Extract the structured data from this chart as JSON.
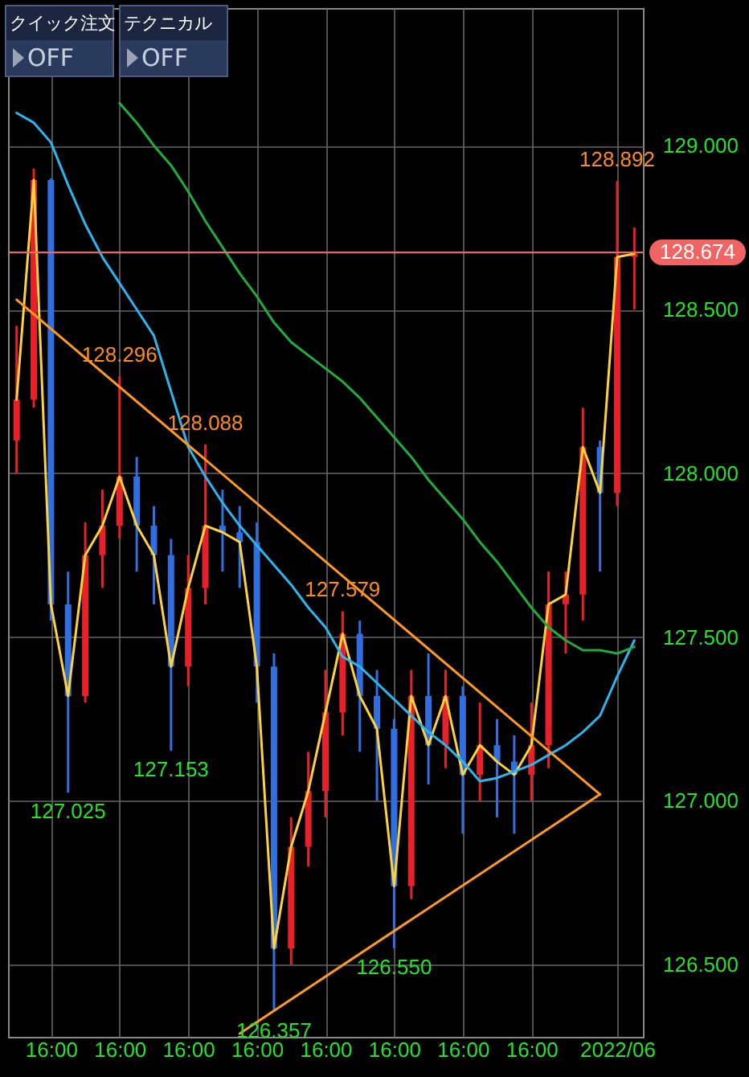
{
  "chart_data": {
    "type": "candlestick",
    "categories": [
      null,
      null,
      "16:00",
      null,
      null,
      null,
      "16:00",
      null,
      null,
      null,
      "16:00",
      null,
      null,
      null,
      "16:00",
      null,
      null,
      null,
      "16:00",
      null,
      null,
      null,
      "16:00",
      null,
      null,
      null,
      "16:00",
      null,
      null,
      null,
      "16:00",
      null,
      null,
      null,
      null,
      "2022/06",
      null
    ],
    "ohlc": [
      [
        128.1,
        128.45,
        128.0,
        128.225
      ],
      [
        128.225,
        128.93,
        128.2,
        128.895
      ],
      [
        128.895,
        128.9,
        127.55,
        127.6
      ],
      [
        127.6,
        127.7,
        127.025,
        127.32
      ],
      [
        127.32,
        127.85,
        127.3,
        127.75
      ],
      [
        127.75,
        127.95,
        127.65,
        127.84
      ],
      [
        127.84,
        128.296,
        127.8,
        127.99
      ],
      [
        127.99,
        128.05,
        127.7,
        127.84
      ],
      [
        127.84,
        127.9,
        127.6,
        127.75
      ],
      [
        127.75,
        127.8,
        127.153,
        127.41
      ],
      [
        127.41,
        127.75,
        127.35,
        127.65
      ],
      [
        127.65,
        128.088,
        127.6,
        127.84
      ],
      [
        127.84,
        127.95,
        127.7,
        127.82
      ],
      [
        127.82,
        127.9,
        127.65,
        127.79
      ],
      [
        127.79,
        127.85,
        127.3,
        127.41
      ],
      [
        127.41,
        127.45,
        126.357,
        126.55
      ],
      [
        126.55,
        126.95,
        126.5,
        126.86
      ],
      [
        126.86,
        127.15,
        126.8,
        127.03
      ],
      [
        127.03,
        127.4,
        126.95,
        127.27
      ],
      [
        127.27,
        127.579,
        127.2,
        127.51
      ],
      [
        127.51,
        127.55,
        127.15,
        127.32
      ],
      [
        127.32,
        127.4,
        127.0,
        127.22
      ],
      [
        127.22,
        127.25,
        126.55,
        126.74
      ],
      [
        126.74,
        127.4,
        126.7,
        127.32
      ],
      [
        127.32,
        127.45,
        127.05,
        127.17
      ],
      [
        127.17,
        127.4,
        127.1,
        127.32
      ],
      [
        127.32,
        127.35,
        126.9,
        127.08
      ],
      [
        127.08,
        127.3,
        127.0,
        127.17
      ],
      [
        127.17,
        127.25,
        126.95,
        127.12
      ],
      [
        127.12,
        127.2,
        126.9,
        127.08
      ],
      [
        127.08,
        127.3,
        127.0,
        127.17
      ],
      [
        127.17,
        127.7,
        127.1,
        127.6
      ],
      [
        127.6,
        127.7,
        127.45,
        127.63
      ],
      [
        127.63,
        128.2,
        127.55,
        128.08
      ],
      [
        128.08,
        128.1,
        127.7,
        127.94
      ],
      [
        127.94,
        128.892,
        127.9,
        128.66
      ],
      [
        128.66,
        128.75,
        128.5,
        128.67
      ]
    ],
    "series": [
      {
        "type": "line",
        "color": "#ffd23c",
        "values": [
          128.225,
          128.895,
          127.6,
          127.32,
          127.75,
          127.84,
          127.99,
          127.84,
          127.75,
          127.41,
          127.65,
          127.84,
          127.82,
          127.79,
          127.41,
          126.55,
          126.86,
          127.03,
          127.27,
          127.51,
          127.32,
          127.22,
          126.74,
          127.32,
          127.17,
          127.32,
          127.08,
          127.17,
          127.12,
          127.08,
          127.17,
          127.6,
          127.63,
          128.08,
          127.94,
          128.66,
          128.67
        ]
      },
      {
        "type": "line",
        "color": "#2bb5f0",
        "values": [
          129.1,
          129.07,
          129.01,
          128.88,
          128.76,
          128.66,
          128.58,
          128.5,
          128.42,
          128.25,
          128.08,
          127.99,
          127.91,
          127.84,
          127.78,
          127.72,
          127.66,
          127.59,
          127.53,
          127.44,
          127.41,
          127.36,
          127.31,
          127.26,
          127.21,
          127.17,
          127.12,
          127.06,
          127.07,
          127.09,
          127.11,
          127.14,
          127.17,
          127.21,
          127.26,
          127.38,
          127.49
        ]
      },
      {
        "type": "line",
        "color": "#1fae3c",
        "values": [
          null,
          null,
          null,
          null,
          null,
          null,
          129.13,
          129.07,
          129.0,
          128.94,
          128.86,
          128.77,
          128.69,
          128.61,
          128.54,
          128.46,
          128.4,
          128.36,
          128.32,
          128.28,
          128.23,
          128.17,
          128.11,
          128.05,
          127.98,
          127.92,
          127.86,
          127.79,
          127.73,
          127.66,
          127.59,
          127.53,
          127.49,
          127.46,
          127.46,
          127.45,
          127.47
        ]
      },
      {
        "type": "line",
        "color": "#ff9a1f",
        "values": [
          128.53,
          null,
          null,
          null,
          null,
          null,
          null,
          null,
          null,
          null,
          null,
          null,
          null,
          null,
          null,
          null,
          null,
          null,
          null,
          null,
          null,
          null,
          null,
          null,
          null,
          null,
          null,
          null,
          null,
          null,
          null,
          null,
          null,
          null,
          127.02,
          null,
          null
        ]
      },
      {
        "type": "line",
        "color": "#ff9a1f",
        "values": [
          null,
          null,
          null,
          null,
          null,
          null,
          null,
          null,
          null,
          null,
          null,
          null,
          null,
          126.29,
          null,
          null,
          null,
          null,
          null,
          null,
          null,
          null,
          null,
          null,
          null,
          null,
          null,
          null,
          null,
          null,
          null,
          null,
          null,
          null,
          127.02,
          null,
          null
        ]
      }
    ],
    "ref_lines": [
      {
        "axis": "y",
        "value": 128.674,
        "label": "128.674",
        "color": "#f06464"
      }
    ],
    "annotations": [
      "クイック注文",
      "OFF",
      "テクニカル",
      "OFF",
      {
        "text": "128.296",
        "y": 128.296
      },
      {
        "text": "128.088",
        "y": 128.088
      },
      {
        "text": "127.579",
        "y": 127.579
      },
      {
        "text": "128.892",
        "y": 128.892
      },
      {
        "text": "127.025",
        "y": 127.025
      },
      {
        "text": "127.153",
        "y": 127.153
      },
      {
        "text": "126.357",
        "y": 126.357
      },
      {
        "text": "126.550",
        "y": 126.55
      }
    ],
    "ylim": [
      126.28,
      129.42
    ],
    "yticks": [
      {
        "value": 126.5,
        "label": "126.500"
      },
      {
        "value": 127,
        "label": "127.000"
      },
      {
        "value": 127.5,
        "label": "127.500"
      },
      {
        "value": 128,
        "label": "128.000"
      },
      {
        "value": 128.5,
        "label": "128.500"
      },
      {
        "value": 129,
        "label": "129.000"
      }
    ],
    "grid": true
  }
}
